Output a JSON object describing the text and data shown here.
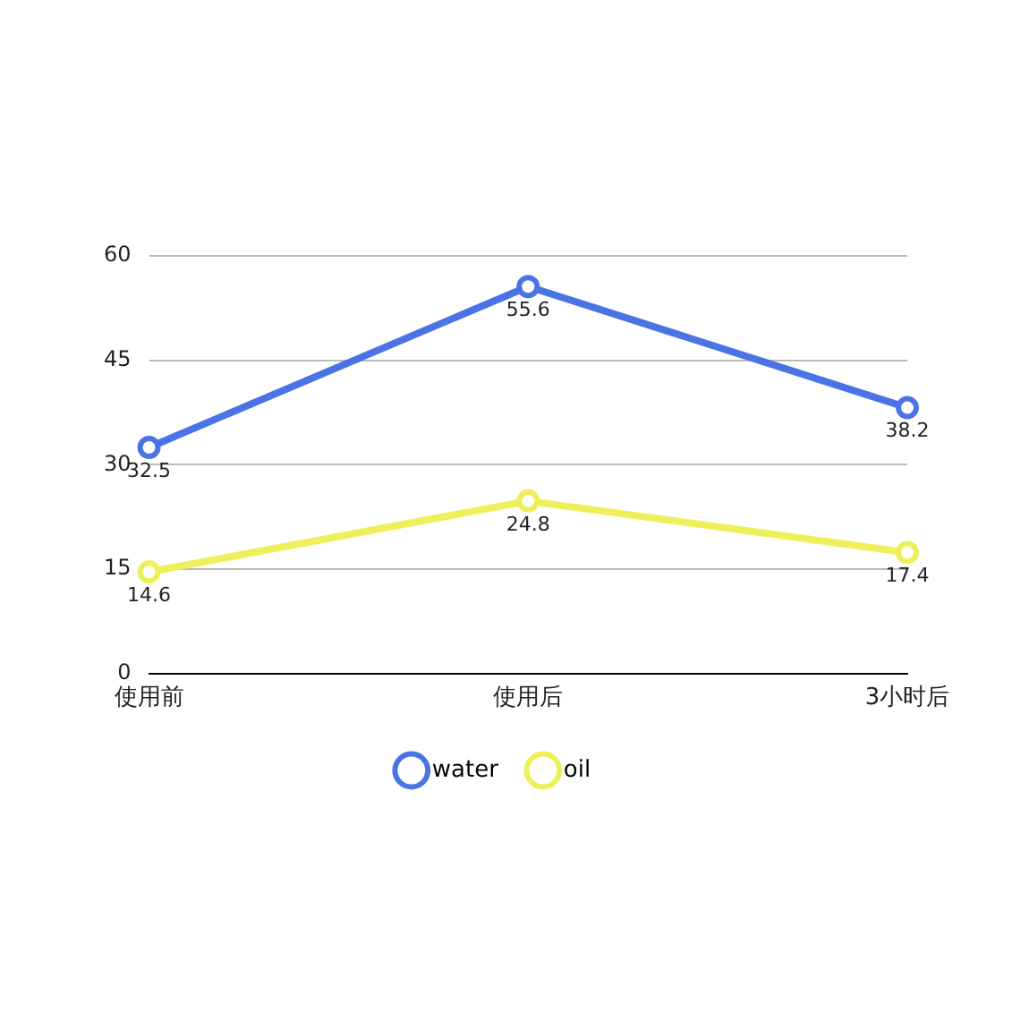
{
  "chart_data": {
    "type": "line",
    "categories": [
      "使用前",
      "使用后",
      "3小时后"
    ],
    "series": [
      {
        "name": "water",
        "color": "#4a74e6",
        "values": [
          32.5,
          55.6,
          38.2
        ]
      },
      {
        "name": "oil",
        "color": "#eef05a",
        "values": [
          14.6,
          24.8,
          17.4
        ]
      }
    ],
    "ylim": [
      0,
      60
    ],
    "yticks": [
      0,
      15,
      30,
      45,
      60
    ],
    "grid": "y",
    "legend": "bottom",
    "marker": "circle",
    "data_labels": true
  }
}
